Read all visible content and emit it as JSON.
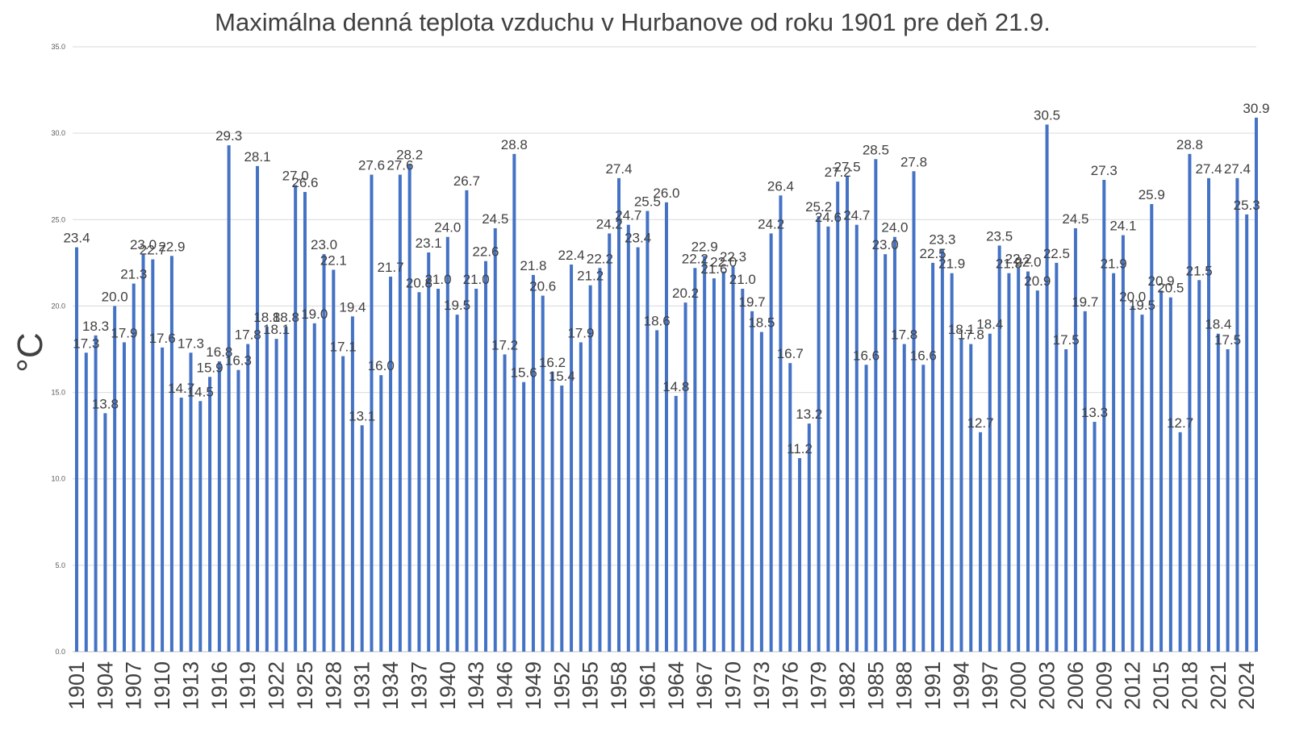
{
  "chart_data": {
    "type": "bar",
    "title": "Maximálna denná teplota vzduchu v Hurbanove od roku 1901 pre deň 21.9.",
    "xlabel": "",
    "ylabel": "°C",
    "ylim": [
      0,
      35
    ],
    "yticks": [
      "0.0",
      "5.0",
      "10.0",
      "15.0",
      "20.0",
      "25.0",
      "30.0",
      "35.0"
    ],
    "grid": true,
    "legend": "none",
    "bar_color": "#4472c4",
    "x_start": 1901,
    "x_tick_labels": [
      "1901",
      "1904",
      "1907",
      "1910",
      "1913",
      "1916",
      "1919",
      "1922",
      "1925",
      "1928",
      "1931",
      "1934",
      "1937",
      "1940",
      "1943",
      "1946",
      "1949",
      "1952",
      "1955",
      "1958",
      "1961",
      "1964",
      "1967",
      "1970",
      "1973",
      "1976",
      "1979",
      "1982",
      "1985",
      "1988",
      "1991",
      "1994",
      "1997",
      "2000",
      "2003",
      "2006",
      "2009",
      "2012",
      "2015",
      "2018",
      "2021",
      "2024"
    ],
    "values": [
      23.4,
      17.3,
      18.3,
      13.8,
      20.0,
      17.9,
      21.3,
      23.0,
      22.7,
      17.6,
      22.9,
      14.7,
      17.3,
      14.5,
      15.9,
      16.8,
      29.3,
      16.3,
      17.8,
      28.1,
      18.8,
      18.1,
      18.8,
      27.0,
      26.6,
      19.0,
      23.0,
      22.1,
      17.1,
      19.4,
      13.1,
      27.6,
      16.0,
      21.7,
      27.6,
      28.2,
      20.8,
      23.1,
      21.0,
      24.0,
      19.5,
      26.7,
      21.0,
      22.6,
      24.5,
      17.2,
      28.8,
      15.6,
      21.8,
      20.6,
      16.2,
      15.4,
      22.4,
      17.9,
      21.2,
      22.2,
      24.2,
      27.4,
      24.7,
      23.4,
      25.5,
      18.6,
      26.0,
      14.8,
      20.2,
      22.2,
      22.9,
      21.6,
      22.0,
      22.3,
      21.0,
      19.7,
      18.5,
      24.2,
      26.4,
      16.7,
      11.2,
      13.2,
      25.2,
      24.6,
      27.2,
      27.5,
      24.7,
      16.6,
      28.5,
      23.0,
      24.0,
      17.8,
      27.8,
      16.6,
      22.5,
      23.3,
      21.9,
      18.1,
      17.8,
      12.7,
      18.4,
      23.5,
      21.9,
      22.2,
      22.0,
      20.9,
      30.5,
      22.5,
      17.5,
      24.5,
      19.7,
      13.3,
      27.3,
      21.9,
      24.1,
      20.0,
      19.5,
      25.9,
      20.9,
      20.5,
      12.7,
      28.8,
      21.5,
      27.4,
      18.4,
      17.5,
      27.4,
      25.3,
      30.9
    ]
  }
}
